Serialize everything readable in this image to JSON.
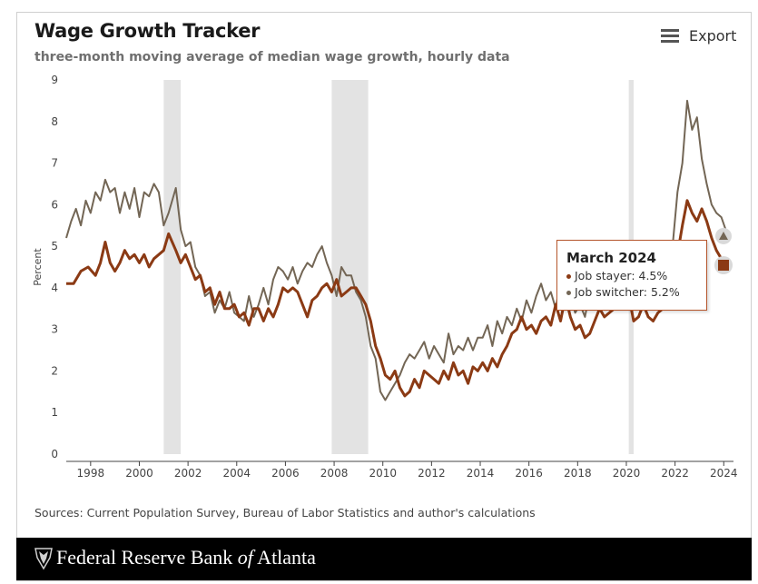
{
  "header": {
    "title": "Wage Growth Tracker",
    "subtitle": "three-month moving average of median wage growth, hourly data",
    "export_label": "Export"
  },
  "colors": {
    "job_stayer": "#8b3a14",
    "job_switcher": "#736655",
    "recession_band": "#e3e3e3",
    "tooltip_border": "#b5552b"
  },
  "tooltip": {
    "title": "March 2024",
    "stayer": "Job stayer: 4.5%",
    "switcher": "Job switcher: 5.2%"
  },
  "sources": "Sources: Current Population Survey, Bureau of Labor Statistics and author's calculations",
  "footer": {
    "brand_prefix": "Federal Reserve Bank ",
    "brand_of": "of",
    "brand_suffix": " Atlanta",
    "logo_icon": "eagle-seal-icon"
  },
  "chart_data": {
    "type": "line",
    "title": "Wage Growth Tracker",
    "subtitle": "three-month moving average of median wage growth, hourly data",
    "xlabel": "",
    "ylabel": "Percent",
    "xlim": [
      1997,
      2024.4
    ],
    "ylim": [
      0,
      9
    ],
    "x_ticks": [
      "1998",
      "2000",
      "2002",
      "2004",
      "2006",
      "2008",
      "2010",
      "2012",
      "2014",
      "2016",
      "2018",
      "2020",
      "2022",
      "2024"
    ],
    "y_ticks": [
      "0",
      "1",
      "2",
      "3",
      "4",
      "5",
      "6",
      "7",
      "8",
      "9"
    ],
    "grid": false,
    "recessions": [
      [
        2001.0,
        2001.7
      ],
      [
        2007.9,
        2009.4
      ],
      [
        2020.1,
        2020.3
      ]
    ],
    "series": [
      {
        "name": "Job stayer",
        "points": [
          [
            1997.0,
            4.1
          ],
          [
            1997.3,
            4.1
          ],
          [
            1997.6,
            4.4
          ],
          [
            1997.9,
            4.5
          ],
          [
            1998.2,
            4.3
          ],
          [
            1998.4,
            4.6
          ],
          [
            1998.6,
            5.1
          ],
          [
            1998.8,
            4.6
          ],
          [
            1999.0,
            4.4
          ],
          [
            1999.2,
            4.6
          ],
          [
            1999.4,
            4.9
          ],
          [
            1999.6,
            4.7
          ],
          [
            1999.8,
            4.8
          ],
          [
            2000.0,
            4.6
          ],
          [
            2000.2,
            4.8
          ],
          [
            2000.4,
            4.5
          ],
          [
            2000.6,
            4.7
          ],
          [
            2000.8,
            4.8
          ],
          [
            2001.0,
            4.9
          ],
          [
            2001.2,
            5.3
          ],
          [
            2001.5,
            4.9
          ],
          [
            2001.7,
            4.6
          ],
          [
            2001.9,
            4.8
          ],
          [
            2002.1,
            4.5
          ],
          [
            2002.3,
            4.2
          ],
          [
            2002.5,
            4.3
          ],
          [
            2002.7,
            3.9
          ],
          [
            2002.9,
            4.0
          ],
          [
            2003.1,
            3.6
          ],
          [
            2003.3,
            3.9
          ],
          [
            2003.5,
            3.5
          ],
          [
            2003.7,
            3.5
          ],
          [
            2003.9,
            3.6
          ],
          [
            2004.1,
            3.3
          ],
          [
            2004.3,
            3.4
          ],
          [
            2004.5,
            3.1
          ],
          [
            2004.7,
            3.5
          ],
          [
            2004.9,
            3.5
          ],
          [
            2005.1,
            3.2
          ],
          [
            2005.3,
            3.5
          ],
          [
            2005.5,
            3.3
          ],
          [
            2005.7,
            3.6
          ],
          [
            2005.9,
            4.0
          ],
          [
            2006.1,
            3.9
          ],
          [
            2006.3,
            4.0
          ],
          [
            2006.5,
            3.9
          ],
          [
            2006.7,
            3.6
          ],
          [
            2006.9,
            3.3
          ],
          [
            2007.1,
            3.7
          ],
          [
            2007.3,
            3.8
          ],
          [
            2007.5,
            4.0
          ],
          [
            2007.7,
            4.1
          ],
          [
            2007.9,
            3.9
          ],
          [
            2008.1,
            4.2
          ],
          [
            2008.3,
            3.8
          ],
          [
            2008.5,
            3.9
          ],
          [
            2008.7,
            4.0
          ],
          [
            2008.9,
            4.0
          ],
          [
            2009.1,
            3.8
          ],
          [
            2009.3,
            3.6
          ],
          [
            2009.5,
            3.2
          ],
          [
            2009.7,
            2.6
          ],
          [
            2009.9,
            2.3
          ],
          [
            2010.1,
            1.9
          ],
          [
            2010.3,
            1.8
          ],
          [
            2010.5,
            2.0
          ],
          [
            2010.7,
            1.6
          ],
          [
            2010.9,
            1.4
          ],
          [
            2011.1,
            1.5
          ],
          [
            2011.3,
            1.8
          ],
          [
            2011.5,
            1.6
          ],
          [
            2011.7,
            2.0
          ],
          [
            2011.9,
            1.9
          ],
          [
            2012.1,
            1.8
          ],
          [
            2012.3,
            1.7
          ],
          [
            2012.5,
            2.0
          ],
          [
            2012.7,
            1.8
          ],
          [
            2012.9,
            2.2
          ],
          [
            2013.1,
            1.9
          ],
          [
            2013.3,
            2.0
          ],
          [
            2013.5,
            1.7
          ],
          [
            2013.7,
            2.1
          ],
          [
            2013.9,
            2.0
          ],
          [
            2014.1,
            2.2
          ],
          [
            2014.3,
            2.0
          ],
          [
            2014.5,
            2.3
          ],
          [
            2014.7,
            2.1
          ],
          [
            2014.9,
            2.4
          ],
          [
            2015.1,
            2.6
          ],
          [
            2015.3,
            2.9
          ],
          [
            2015.5,
            3.0
          ],
          [
            2015.7,
            3.3
          ],
          [
            2015.9,
            3.0
          ],
          [
            2016.1,
            3.1
          ],
          [
            2016.3,
            2.9
          ],
          [
            2016.5,
            3.2
          ],
          [
            2016.7,
            3.3
          ],
          [
            2016.9,
            3.1
          ],
          [
            2017.1,
            3.6
          ],
          [
            2017.3,
            3.2
          ],
          [
            2017.5,
            3.8
          ],
          [
            2017.7,
            3.3
          ],
          [
            2017.9,
            3.0
          ],
          [
            2018.1,
            3.1
          ],
          [
            2018.3,
            2.8
          ],
          [
            2018.5,
            2.9
          ],
          [
            2018.7,
            3.2
          ],
          [
            2018.9,
            3.5
          ],
          [
            2019.1,
            3.3
          ],
          [
            2019.3,
            3.4
          ],
          [
            2019.5,
            3.5
          ],
          [
            2019.7,
            3.6
          ],
          [
            2019.9,
            3.5
          ],
          [
            2020.1,
            3.8
          ],
          [
            2020.3,
            3.2
          ],
          [
            2020.5,
            3.3
          ],
          [
            2020.7,
            3.6
          ],
          [
            2020.9,
            3.3
          ],
          [
            2021.1,
            3.2
          ],
          [
            2021.3,
            3.4
          ],
          [
            2021.5,
            3.5
          ],
          [
            2021.7,
            3.6
          ],
          [
            2021.9,
            4.2
          ],
          [
            2022.1,
            4.8
          ],
          [
            2022.3,
            5.5
          ],
          [
            2022.5,
            6.1
          ],
          [
            2022.7,
            5.8
          ],
          [
            2022.9,
            5.6
          ],
          [
            2023.1,
            5.9
          ],
          [
            2023.3,
            5.6
          ],
          [
            2023.5,
            5.2
          ],
          [
            2023.7,
            4.9
          ],
          [
            2023.9,
            4.7
          ],
          [
            2024.2,
            4.5
          ]
        ]
      },
      {
        "name": "Job switcher",
        "points": [
          [
            1997.0,
            5.2
          ],
          [
            1997.2,
            5.6
          ],
          [
            1997.4,
            5.9
          ],
          [
            1997.6,
            5.5
          ],
          [
            1997.8,
            6.1
          ],
          [
            1998.0,
            5.8
          ],
          [
            1998.2,
            6.3
          ],
          [
            1998.4,
            6.1
          ],
          [
            1998.6,
            6.6
          ],
          [
            1998.8,
            6.3
          ],
          [
            1999.0,
            6.4
          ],
          [
            1999.2,
            5.8
          ],
          [
            1999.4,
            6.3
          ],
          [
            1999.6,
            5.9
          ],
          [
            1999.8,
            6.4
          ],
          [
            2000.0,
            5.7
          ],
          [
            2000.2,
            6.3
          ],
          [
            2000.4,
            6.2
          ],
          [
            2000.6,
            6.5
          ],
          [
            2000.8,
            6.3
          ],
          [
            2001.0,
            5.5
          ],
          [
            2001.2,
            5.8
          ],
          [
            2001.5,
            6.4
          ],
          [
            2001.7,
            5.4
          ],
          [
            2001.9,
            5.0
          ],
          [
            2002.1,
            5.1
          ],
          [
            2002.3,
            4.5
          ],
          [
            2002.5,
            4.3
          ],
          [
            2002.7,
            3.8
          ],
          [
            2002.9,
            3.9
          ],
          [
            2003.1,
            3.4
          ],
          [
            2003.3,
            3.7
          ],
          [
            2003.5,
            3.5
          ],
          [
            2003.7,
            3.9
          ],
          [
            2003.9,
            3.4
          ],
          [
            2004.1,
            3.3
          ],
          [
            2004.3,
            3.2
          ],
          [
            2004.5,
            3.8
          ],
          [
            2004.7,
            3.3
          ],
          [
            2004.9,
            3.6
          ],
          [
            2005.1,
            4.0
          ],
          [
            2005.3,
            3.6
          ],
          [
            2005.5,
            4.2
          ],
          [
            2005.7,
            4.5
          ],
          [
            2005.9,
            4.4
          ],
          [
            2006.1,
            4.2
          ],
          [
            2006.3,
            4.5
          ],
          [
            2006.5,
            4.1
          ],
          [
            2006.7,
            4.4
          ],
          [
            2006.9,
            4.6
          ],
          [
            2007.1,
            4.5
          ],
          [
            2007.3,
            4.8
          ],
          [
            2007.5,
            5.0
          ],
          [
            2007.7,
            4.6
          ],
          [
            2007.9,
            4.3
          ],
          [
            2008.1,
            3.8
          ],
          [
            2008.3,
            4.5
          ],
          [
            2008.5,
            4.3
          ],
          [
            2008.7,
            4.3
          ],
          [
            2008.9,
            3.9
          ],
          [
            2009.1,
            3.7
          ],
          [
            2009.3,
            3.3
          ],
          [
            2009.5,
            2.6
          ],
          [
            2009.7,
            2.3
          ],
          [
            2009.9,
            1.5
          ],
          [
            2010.1,
            1.3
          ],
          [
            2010.3,
            1.5
          ],
          [
            2010.5,
            1.7
          ],
          [
            2010.7,
            1.9
          ],
          [
            2010.9,
            2.2
          ],
          [
            2011.1,
            2.4
          ],
          [
            2011.3,
            2.3
          ],
          [
            2011.5,
            2.5
          ],
          [
            2011.7,
            2.7
          ],
          [
            2011.9,
            2.3
          ],
          [
            2012.1,
            2.6
          ],
          [
            2012.3,
            2.4
          ],
          [
            2012.5,
            2.2
          ],
          [
            2012.7,
            2.9
          ],
          [
            2012.9,
            2.4
          ],
          [
            2013.1,
            2.6
          ],
          [
            2013.3,
            2.5
          ],
          [
            2013.5,
            2.8
          ],
          [
            2013.7,
            2.5
          ],
          [
            2013.9,
            2.8
          ],
          [
            2014.1,
            2.8
          ],
          [
            2014.3,
            3.1
          ],
          [
            2014.5,
            2.6
          ],
          [
            2014.7,
            3.2
          ],
          [
            2014.9,
            2.9
          ],
          [
            2015.1,
            3.3
          ],
          [
            2015.3,
            3.1
          ],
          [
            2015.5,
            3.5
          ],
          [
            2015.7,
            3.2
          ],
          [
            2015.9,
            3.7
          ],
          [
            2016.1,
            3.4
          ],
          [
            2016.3,
            3.8
          ],
          [
            2016.5,
            4.1
          ],
          [
            2016.7,
            3.7
          ],
          [
            2016.9,
            3.9
          ],
          [
            2017.1,
            3.5
          ],
          [
            2017.3,
            4.2
          ],
          [
            2017.5,
            4.4
          ],
          [
            2017.7,
            3.8
          ],
          [
            2017.9,
            3.4
          ],
          [
            2018.1,
            3.6
          ],
          [
            2018.3,
            3.3
          ],
          [
            2018.5,
            3.9
          ],
          [
            2018.7,
            4.2
          ],
          [
            2018.9,
            3.6
          ],
          [
            2019.1,
            3.9
          ],
          [
            2019.3,
            3.5
          ],
          [
            2019.5,
            4.1
          ],
          [
            2019.7,
            3.5
          ],
          [
            2019.9,
            3.8
          ],
          [
            2020.1,
            3.7
          ],
          [
            2020.3,
            3.9
          ],
          [
            2020.5,
            4.2
          ],
          [
            2020.7,
            3.7
          ],
          [
            2020.9,
            4.1
          ],
          [
            2021.1,
            3.8
          ],
          [
            2021.3,
            3.6
          ],
          [
            2021.5,
            3.9
          ],
          [
            2021.7,
            4.3
          ],
          [
            2021.9,
            5.0
          ],
          [
            2022.1,
            6.3
          ],
          [
            2022.3,
            7.0
          ],
          [
            2022.5,
            8.5
          ],
          [
            2022.7,
            7.8
          ],
          [
            2022.9,
            8.1
          ],
          [
            2023.1,
            7.1
          ],
          [
            2023.3,
            6.5
          ],
          [
            2023.5,
            6.0
          ],
          [
            2023.7,
            5.8
          ],
          [
            2023.9,
            5.7
          ],
          [
            2024.2,
            5.2
          ]
        ]
      }
    ]
  }
}
